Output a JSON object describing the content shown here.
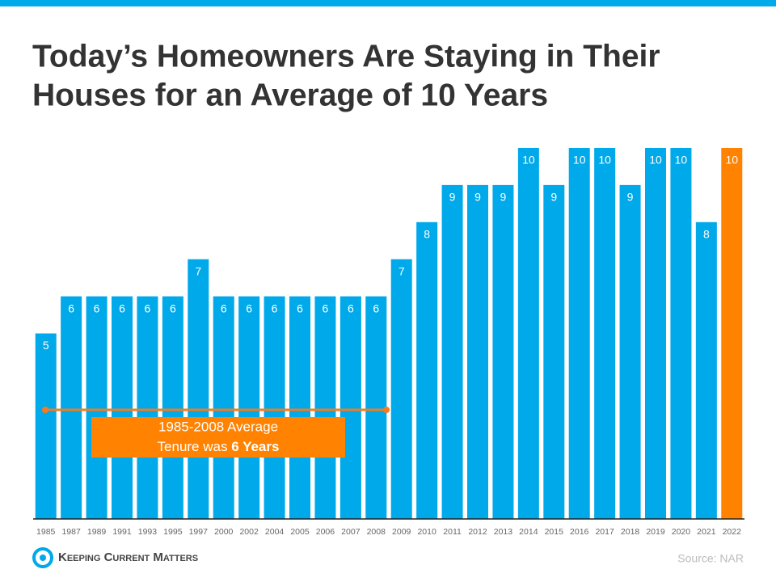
{
  "chart_data": {
    "type": "bar",
    "title": [
      "Today’s Homeowners Are Staying in Their",
      "Houses for an Average of 10 Years"
    ],
    "categories": [
      "1985",
      "1987",
      "1989",
      "1991",
      "1993",
      "1995",
      "1997",
      "2000",
      "2002",
      "2004",
      "2005",
      "2006",
      "2007",
      "2008",
      "2009",
      "2010",
      "2011",
      "2012",
      "2013",
      "2014",
      "2015",
      "2016",
      "2017",
      "2018",
      "2019",
      "2020",
      "2021",
      "2022"
    ],
    "values": [
      5,
      6,
      6,
      6,
      6,
      6,
      7,
      6,
      6,
      6,
      6,
      6,
      6,
      6,
      7,
      8,
      9,
      9,
      9,
      10,
      9,
      10,
      10,
      9,
      10,
      10,
      8,
      10
    ],
    "colors": [
      "#00a9e9",
      "#00a9e9",
      "#00a9e9",
      "#00a9e9",
      "#00a9e9",
      "#00a9e9",
      "#00a9e9",
      "#00a9e9",
      "#00a9e9",
      "#00a9e9",
      "#00a9e9",
      "#00a9e9",
      "#00a9e9",
      "#00a9e9",
      "#00a9e9",
      "#00a9e9",
      "#00a9e9",
      "#00a9e9",
      "#00a9e9",
      "#00a9e9",
      "#00a9e9",
      "#00a9e9",
      "#00a9e9",
      "#00a9e9",
      "#00a9e9",
      "#00a9e9",
      "#00a9e9",
      "#ff8200"
    ],
    "ylim": [
      0,
      10
    ],
    "annotation": [
      "1985-2008 Average",
      "Tenure was ",
      "6 Years"
    ],
    "brand": "Keeping Current Matters",
    "source": "Source: NAR"
  }
}
